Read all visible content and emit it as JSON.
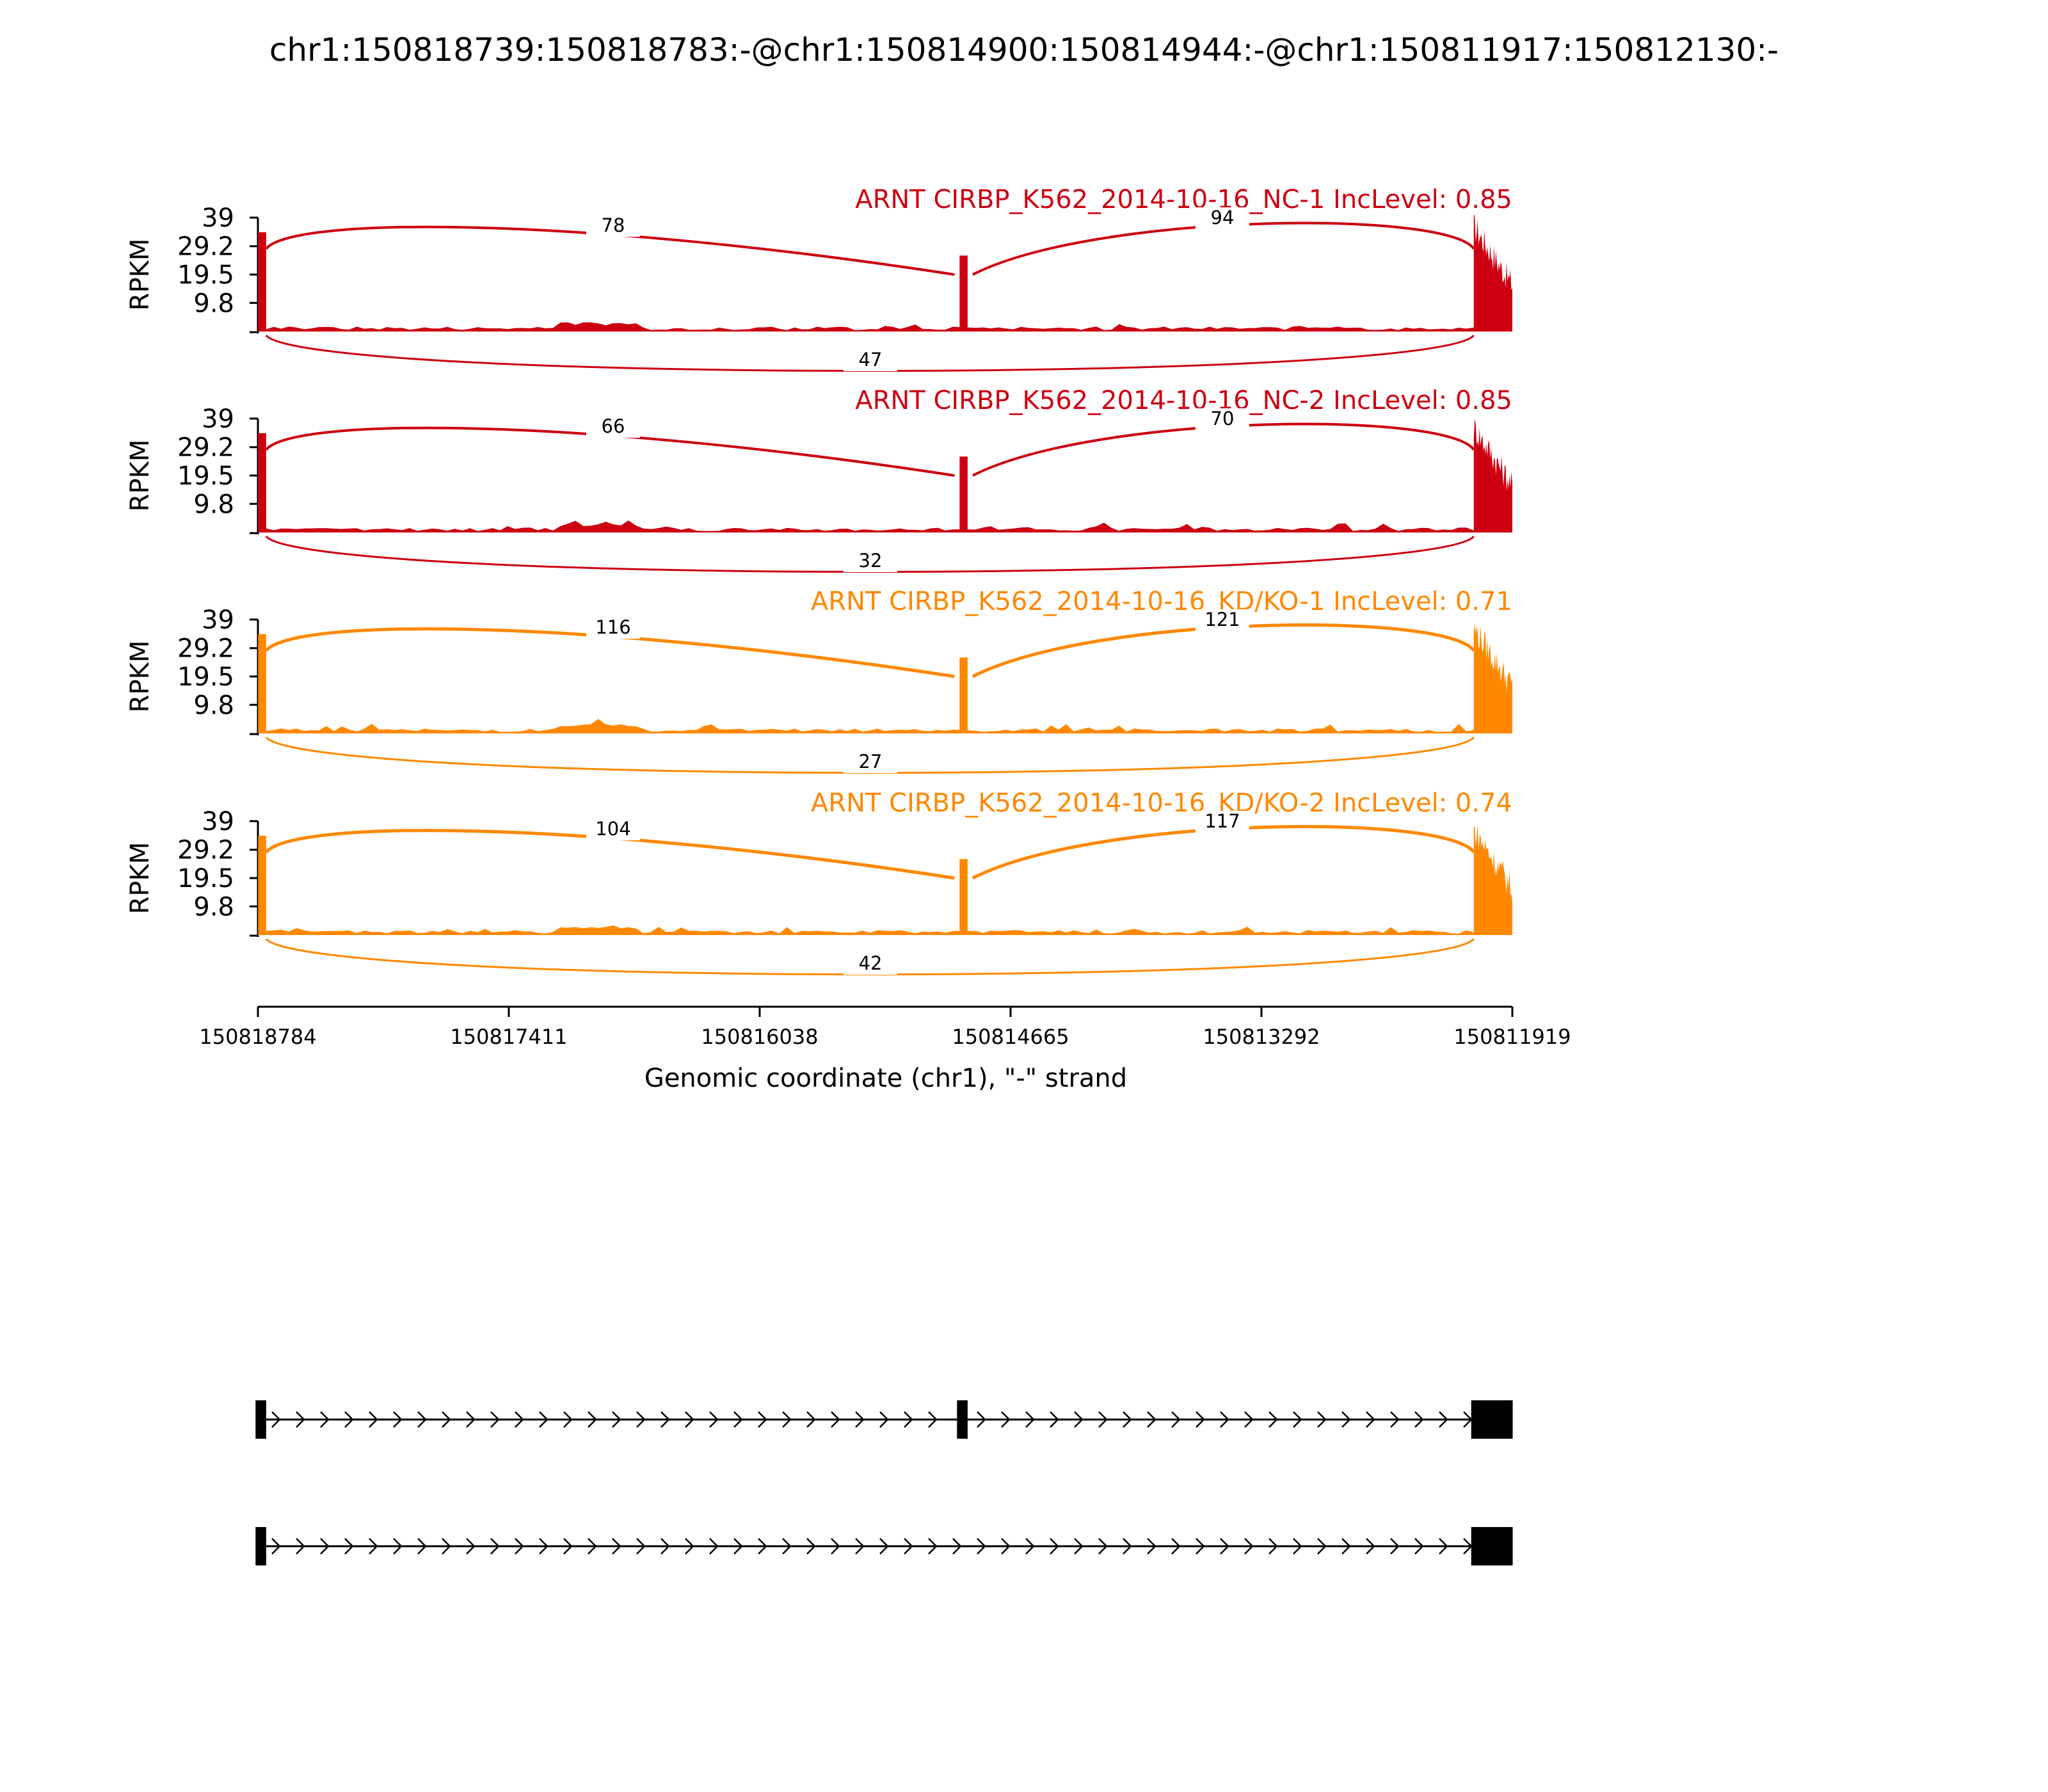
{
  "chart_data": {
    "type": "sashimi",
    "title": "chr1:150818739:150818783:-@chr1:150814900:150814944:-@chr1:150811917:150812130:-",
    "xlabel": "Genomic coordinate (chr1), \"-\" strand",
    "ylabel": "RPKM",
    "ylim": [
      0,
      39
    ],
    "y_ticks": [
      "39",
      "29.2",
      "19.5",
      "9.8"
    ],
    "x_ticks": [
      "150818784",
      "150817411",
      "150816038",
      "150814665",
      "150813292",
      "150811919"
    ],
    "x_tick_values": [
      150818784,
      150817411,
      150816038,
      150814665,
      150813292,
      150811919
    ],
    "x_range": [
      150818784,
      150811919
    ],
    "exons": [
      {
        "start": 150818783,
        "end": 150818739
      },
      {
        "start": 150814944,
        "end": 150814900
      },
      {
        "start": 150812130,
        "end": 150811917
      }
    ],
    "panels": [
      {
        "label": "ARNT CIRBP_K562_2014-10-16_NC-1 IncLevel: 0.85",
        "color": "#cc0011",
        "junctions": {
          "exon1_exon2": 78,
          "exon2_exon3": 94,
          "exon1_exon3": 47
        }
      },
      {
        "label": "ARNT CIRBP_K562_2014-10-16_NC-2 IncLevel: 0.85",
        "color": "#cc0011",
        "junctions": {
          "exon1_exon2": 66,
          "exon2_exon3": 70,
          "exon1_exon3": 32
        }
      },
      {
        "label": "ARNT CIRBP_K562_2014-10-16_KD/KO-1 IncLevel: 0.71",
        "color": "#ff8800",
        "junctions": {
          "exon1_exon2": 116,
          "exon2_exon3": 121,
          "exon1_exon3": 27
        }
      },
      {
        "label": "ARNT CIRBP_K562_2014-10-16_KD/KO-2 IncLevel: 0.74",
        "color": "#ff8800",
        "junctions": {
          "exon1_exon2": 104,
          "exon2_exon3": 117,
          "exon1_exon3": 42
        }
      }
    ],
    "isoforms": [
      {
        "exons": [
          1,
          2,
          3
        ]
      },
      {
        "exons": [
          1,
          3
        ]
      }
    ]
  }
}
